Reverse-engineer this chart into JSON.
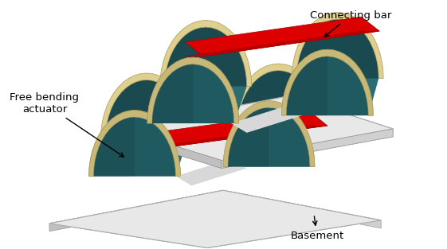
{
  "bg_color": "#ffffff",
  "labels": {
    "connecting_bar": "Connecting bar",
    "free_bending": "Free bending\nactuator",
    "basement": "Basement"
  },
  "colors": {
    "red_bar": "#dd0000",
    "red_bar_side": "#bb0000",
    "teal_membrane": "#2a6e74",
    "teal_dark": "#1a4a50",
    "teal_shadow": "#1e5a60",
    "gold_frame": "#c8b878",
    "gold_light": "#e0d090",
    "gold_dark": "#a89858",
    "base_top": "#e8e8e8",
    "base_side_front": "#c0c0c0",
    "base_side_right": "#d0d0d0",
    "white_inner": "#d8d8d8"
  },
  "figsize": [
    5.61,
    3.13
  ],
  "dpi": 100
}
